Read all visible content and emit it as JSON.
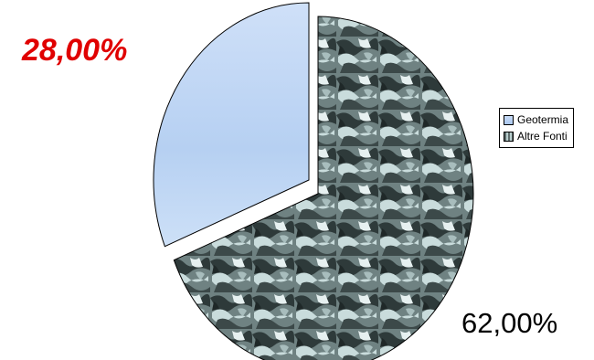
{
  "chart_data": {
    "type": "pie",
    "categories": [
      "Geotermia",
      "Altre Fonti"
    ],
    "values": [
      28,
      62
    ],
    "data_labels": [
      "28,00%",
      "62,00%"
    ],
    "legend": "right",
    "exploded": "Geotermia",
    "colors": {
      "Geotermia": "#b8d2f4",
      "Altre Fonti": "#7f9494",
      "label_geotermia": "#e00000",
      "label_altre": "#000000"
    }
  }
}
